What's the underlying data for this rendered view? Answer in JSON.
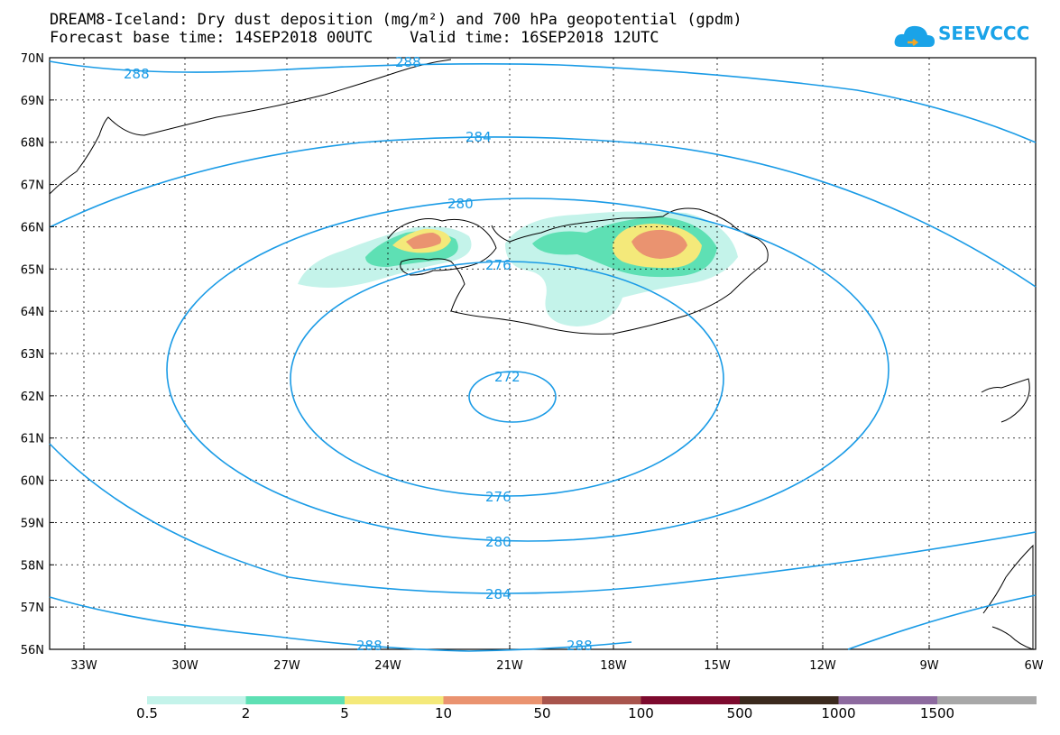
{
  "header": {
    "title_line1": "DREAM8-Iceland: Dry dust deposition (mg/m²) and 700 hPa geopotential (gpdm)",
    "title_line2": "Forecast base time: 14SEP2018 00UTC    Valid time: 16SEP2018 12UTC"
  },
  "logo": {
    "text": "SEEVCCC",
    "icon": "cloud-icon",
    "color": "#1aa3e8"
  },
  "map": {
    "lat_labels": [
      "70N",
      "69N",
      "68N",
      "67N",
      "66N",
      "65N",
      "64N",
      "63N",
      "62N",
      "61N",
      "60N",
      "59N",
      "58N",
      "57N",
      "56N"
    ],
    "lon_labels": [
      "33W",
      "30W",
      "27W",
      "24W",
      "21W",
      "18W",
      "15W",
      "12W",
      "9W",
      "6W"
    ],
    "contour_labels": [
      {
        "text": "288"
      },
      {
        "text": "288"
      },
      {
        "text": "284"
      },
      {
        "text": "280"
      },
      {
        "text": "276"
      },
      {
        "text": "272"
      },
      {
        "text": "276"
      },
      {
        "text": "280"
      },
      {
        "text": "284"
      },
      {
        "text": "288"
      },
      {
        "text": "288"
      }
    ],
    "contour_color": "#1a9be6"
  },
  "colorbar": {
    "labels": [
      "0.5",
      "2",
      "5",
      "10",
      "50",
      "100",
      "500",
      "1000",
      "1500"
    ],
    "colors": [
      "#c4f3ea",
      "#5ee0b4",
      "#f4e97a",
      "#ea9370",
      "#a8544c",
      "#7d0a2e",
      "#3b2a1e",
      "#8d6a9f",
      "#a8a8a8"
    ]
  }
}
